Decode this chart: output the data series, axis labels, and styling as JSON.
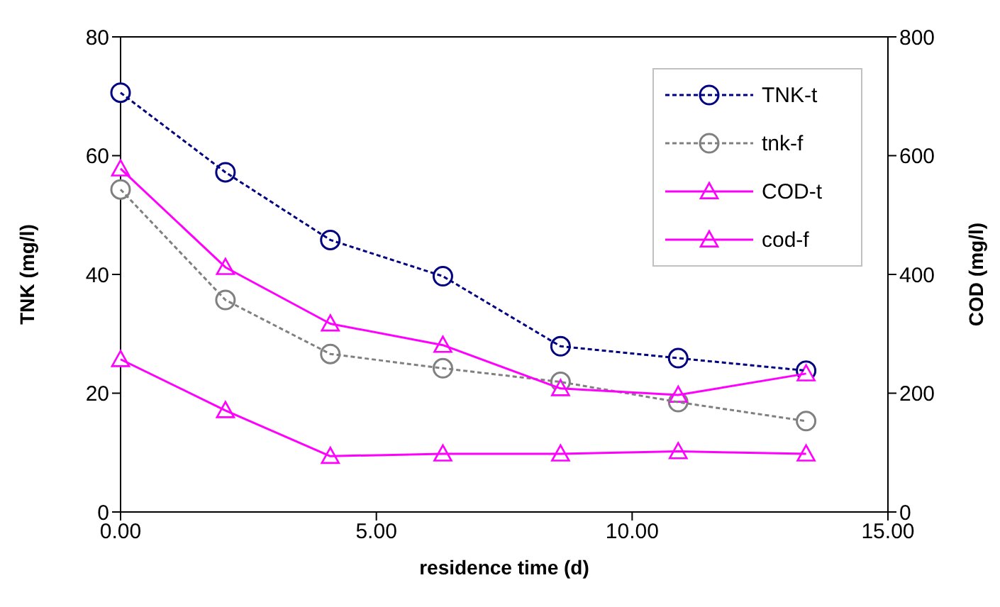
{
  "chart_data": {
    "type": "line",
    "xlabel": "residence time (d)",
    "ylabel": "TNK (mg/l)",
    "y2label": "COD (mg/l)",
    "xlim": [
      0,
      15
    ],
    "xticks": [
      {
        "value": 0,
        "label": "0.00"
      },
      {
        "value": 5,
        "label": "5.00"
      },
      {
        "value": 10,
        "label": "10.00"
      },
      {
        "value": 15,
        "label": "15.00"
      }
    ],
    "ylim": [
      0,
      80
    ],
    "yticks": [
      0,
      20,
      40,
      60,
      80
    ],
    "y2lim": [
      0,
      800
    ],
    "y2ticks": [
      0,
      200,
      400,
      600,
      800
    ],
    "x": [
      0,
      2.05,
      4.1,
      6.3,
      8.6,
      10.9,
      13.4
    ],
    "legend": "top right",
    "series": [
      {
        "name": "TNK-t",
        "color": "#000080",
        "marker": "circle",
        "line_style": "dashed",
        "values": [
          70.6,
          57.2,
          45.8,
          39.7,
          27.9,
          25.9,
          23.8
        ]
      },
      {
        "name": "tnk-f",
        "color": "#808080",
        "marker": "circle",
        "line_style": "dashed",
        "values": [
          54.3,
          35.7,
          26.6,
          24.2,
          21.9,
          18.5,
          15.3
        ]
      },
      {
        "name": "COD-t",
        "color": "#ff00ff",
        "marker": "triangle",
        "line_style": "solid",
        "axis": "y2",
        "values": [
          578,
          412,
          317,
          281,
          208,
          197,
          233
        ]
      },
      {
        "name": "cod-f",
        "color": "#ff00ff",
        "marker": "triangle",
        "line_style": "solid",
        "axis": "y2",
        "values": [
          257,
          171,
          94,
          98,
          98,
          102,
          98
        ]
      }
    ]
  }
}
